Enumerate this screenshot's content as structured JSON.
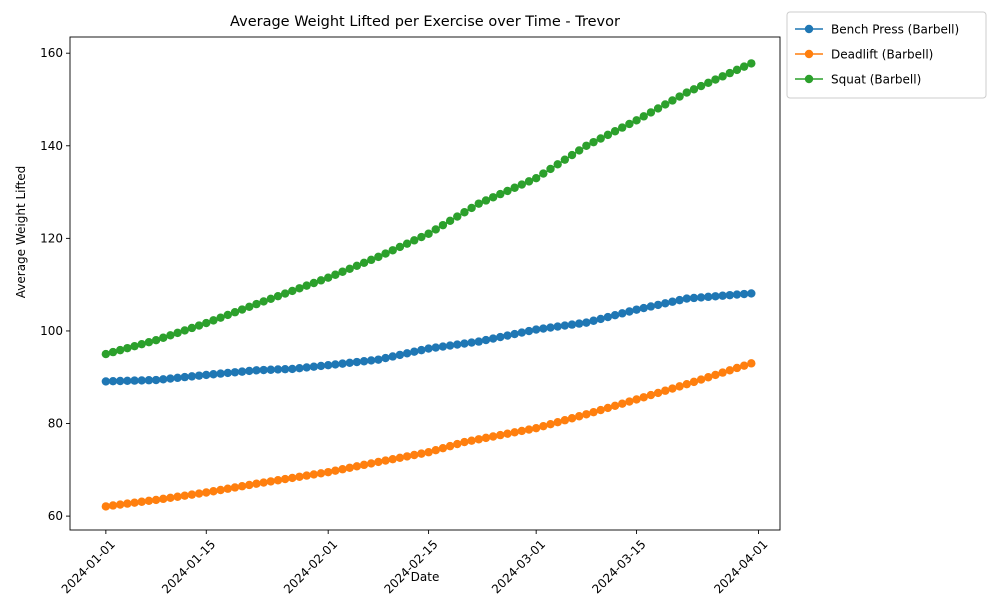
{
  "chart_data": {
    "type": "line",
    "title": "Average Weight Lifted per Exercise over Time - Trevor",
    "xlabel": "Date",
    "ylabel": "Average Weight Lifted",
    "x_start": "2024-01-01",
    "x_end": "2024-03-31",
    "xlim": [
      "2023-12-27",
      "2024-04-04"
    ],
    "ylim": [
      57,
      163.5
    ],
    "x_ticks": [
      "2024-01-01",
      "2024-01-15",
      "2024-02-01",
      "2024-02-15",
      "2024-03-01",
      "2024-03-15",
      "2024-04-01"
    ],
    "y_ticks": [
      60,
      80,
      100,
      120,
      140,
      160
    ],
    "grid": false,
    "legend_position": "outside-top-right",
    "series": [
      {
        "name": "Bench Press (Barbell)",
        "color": "#1f77b4",
        "keyframes": [
          [
            "2024-01-01",
            89.1
          ],
          [
            "2024-01-08",
            89.4
          ],
          [
            "2024-01-15",
            90.5
          ],
          [
            "2024-01-22",
            91.5
          ],
          [
            "2024-01-27",
            91.8
          ],
          [
            "2024-02-01",
            92.6
          ],
          [
            "2024-02-08",
            93.8
          ],
          [
            "2024-02-15",
            96.2
          ],
          [
            "2024-02-22",
            97.7
          ],
          [
            "2024-03-01",
            100.3
          ],
          [
            "2024-03-08",
            101.8
          ],
          [
            "2024-03-15",
            104.6
          ],
          [
            "2024-03-22",
            107.0
          ],
          [
            "2024-03-31",
            108.1
          ]
        ]
      },
      {
        "name": "Deadlift (Barbell)",
        "color": "#ff7f0e",
        "keyframes": [
          [
            "2024-01-01",
            62.1
          ],
          [
            "2024-01-08",
            63.5
          ],
          [
            "2024-01-15",
            65.1
          ],
          [
            "2024-01-22",
            67.0
          ],
          [
            "2024-02-01",
            69.5
          ],
          [
            "2024-02-08",
            71.7
          ],
          [
            "2024-02-15",
            73.8
          ],
          [
            "2024-02-20",
            76.0
          ],
          [
            "2024-03-01",
            79.0
          ],
          [
            "2024-03-08",
            82.0
          ],
          [
            "2024-03-15",
            85.2
          ],
          [
            "2024-03-22",
            88.5
          ],
          [
            "2024-03-31",
            93.0
          ]
        ]
      },
      {
        "name": "Squat (Barbell)",
        "color": "#2ca02c",
        "keyframes": [
          [
            "2024-01-01",
            95.0
          ],
          [
            "2024-01-08",
            98.0
          ],
          [
            "2024-01-15",
            101.7
          ],
          [
            "2024-01-22",
            105.8
          ],
          [
            "2024-02-01",
            111.5
          ],
          [
            "2024-02-08",
            116.0
          ],
          [
            "2024-02-15",
            121.0
          ],
          [
            "2024-02-22",
            127.5
          ],
          [
            "2024-03-01",
            133.0
          ],
          [
            "2024-03-08",
            140.0
          ],
          [
            "2024-03-15",
            145.5
          ],
          [
            "2024-03-22",
            151.5
          ],
          [
            "2024-03-31",
            157.8
          ]
        ]
      }
    ]
  }
}
